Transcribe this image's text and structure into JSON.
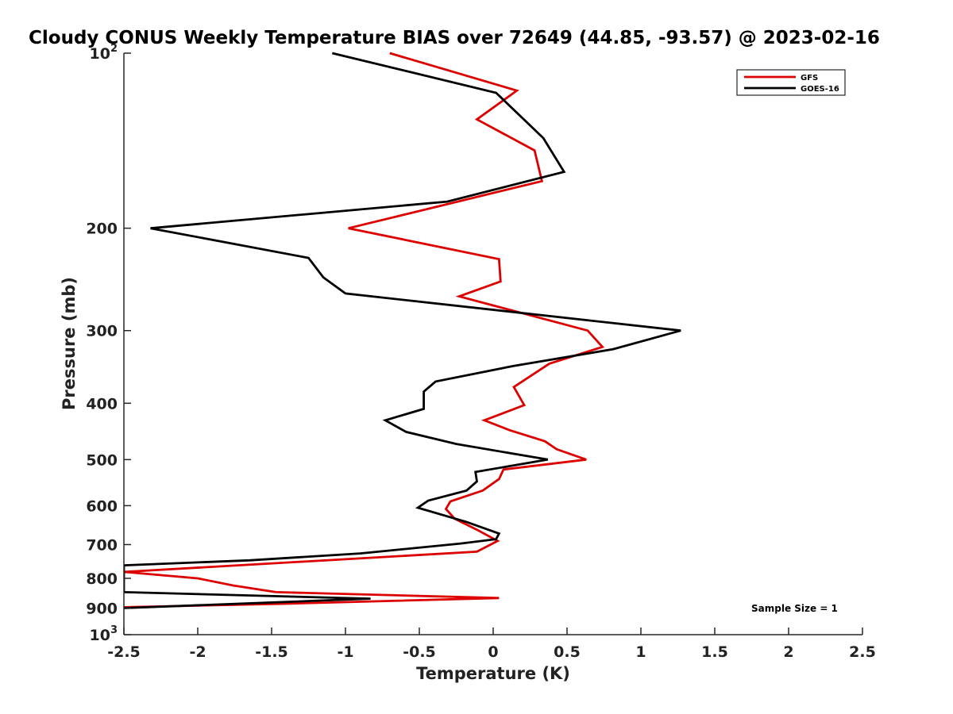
{
  "chart_data": {
    "type": "line",
    "title": "Cloudy CONUS Weekly Temperature BIAS over 72649 (44.85, -93.57) @ 2023-02-16",
    "xlabel": "Temperature (K)",
    "ylabel": "Pressure (mb)",
    "xlim": [
      -2.5,
      2.5
    ],
    "ylim": [
      100,
      1000
    ],
    "yscale": "log",
    "y_reversed": true,
    "grid": false,
    "legend_position": "top-right",
    "x_ticks": [
      "-2.5",
      "-2",
      "-1.5",
      "-1",
      "-0.5",
      "0",
      "0.5",
      "1",
      "1.5",
      "2",
      "2.5"
    ],
    "y_ticks": [
      {
        "value": 100,
        "base": "10",
        "exp": "2"
      },
      {
        "value": 200,
        "label": "200"
      },
      {
        "value": 300,
        "label": "300"
      },
      {
        "value": 400,
        "label": "400"
      },
      {
        "value": 500,
        "label": "500"
      },
      {
        "value": 600,
        "label": "600"
      },
      {
        "value": 700,
        "label": "700"
      },
      {
        "value": 800,
        "label": "800"
      },
      {
        "value": 900,
        "label": "900"
      },
      {
        "value": 1000,
        "base": "10",
        "exp": "3"
      }
    ],
    "annotation": "Sample Size = 1",
    "series": [
      {
        "name": "GFS",
        "color": "#dd0000",
        "points": [
          [
            -0.7,
            100
          ],
          [
            0.16,
            116
          ],
          [
            -0.11,
            130
          ],
          [
            0.28,
            147
          ],
          [
            0.33,
            166
          ],
          [
            -0.98,
            200
          ],
          [
            0.04,
            226
          ],
          [
            0.05,
            247
          ],
          [
            -0.23,
            262
          ],
          [
            0.64,
            300
          ],
          [
            0.74,
            320
          ],
          [
            0.38,
            342
          ],
          [
            0.14,
            375
          ],
          [
            0.21,
            403
          ],
          [
            -0.06,
            428
          ],
          [
            0.11,
            445
          ],
          [
            0.35,
            465
          ],
          [
            0.43,
            480
          ],
          [
            0.63,
            500
          ],
          [
            0.07,
            520
          ],
          [
            0.04,
            540
          ],
          [
            -0.07,
            565
          ],
          [
            -0.29,
            590
          ],
          [
            -0.32,
            608
          ],
          [
            -0.26,
            632
          ],
          [
            -0.11,
            660
          ],
          [
            0.03,
            690
          ],
          [
            -0.11,
            720
          ],
          [
            -1.33,
            750
          ],
          [
            -2.5,
            780
          ],
          [
            -2.0,
            800
          ],
          [
            -1.76,
            823
          ],
          [
            -1.47,
            845
          ],
          [
            0.04,
            865
          ],
          [
            -1.43,
            885
          ],
          [
            -2.5,
            897
          ]
        ]
      },
      {
        "name": "GOES-16",
        "color": "#000000",
        "points": [
          [
            -1.09,
            100
          ],
          [
            0.02,
            117
          ],
          [
            0.34,
            140
          ],
          [
            0.48,
            160
          ],
          [
            -0.31,
            180
          ],
          [
            -2.32,
            200
          ],
          [
            -1.25,
            225
          ],
          [
            -1.15,
            243
          ],
          [
            -1.0,
            259
          ],
          [
            1.27,
            300
          ],
          [
            0.81,
            323
          ],
          [
            0.14,
            345
          ],
          [
            -0.39,
            367
          ],
          [
            -0.47,
            382
          ],
          [
            -0.47,
            409
          ],
          [
            -0.73,
            428
          ],
          [
            -0.59,
            448
          ],
          [
            -0.25,
            470
          ],
          [
            0.37,
            500
          ],
          [
            -0.12,
            525
          ],
          [
            -0.11,
            545
          ],
          [
            -0.18,
            565
          ],
          [
            -0.44,
            588
          ],
          [
            -0.51,
            605
          ],
          [
            -0.18,
            640
          ],
          [
            0.04,
            670
          ],
          [
            0.02,
            685
          ],
          [
            -0.22,
            697
          ],
          [
            -0.9,
            725
          ],
          [
            -1.65,
            745
          ],
          [
            -2.5,
            760
          ],
          [
            -2.5,
            845
          ],
          [
            -0.83,
            867
          ],
          [
            -2.5,
            900
          ]
        ]
      }
    ]
  }
}
